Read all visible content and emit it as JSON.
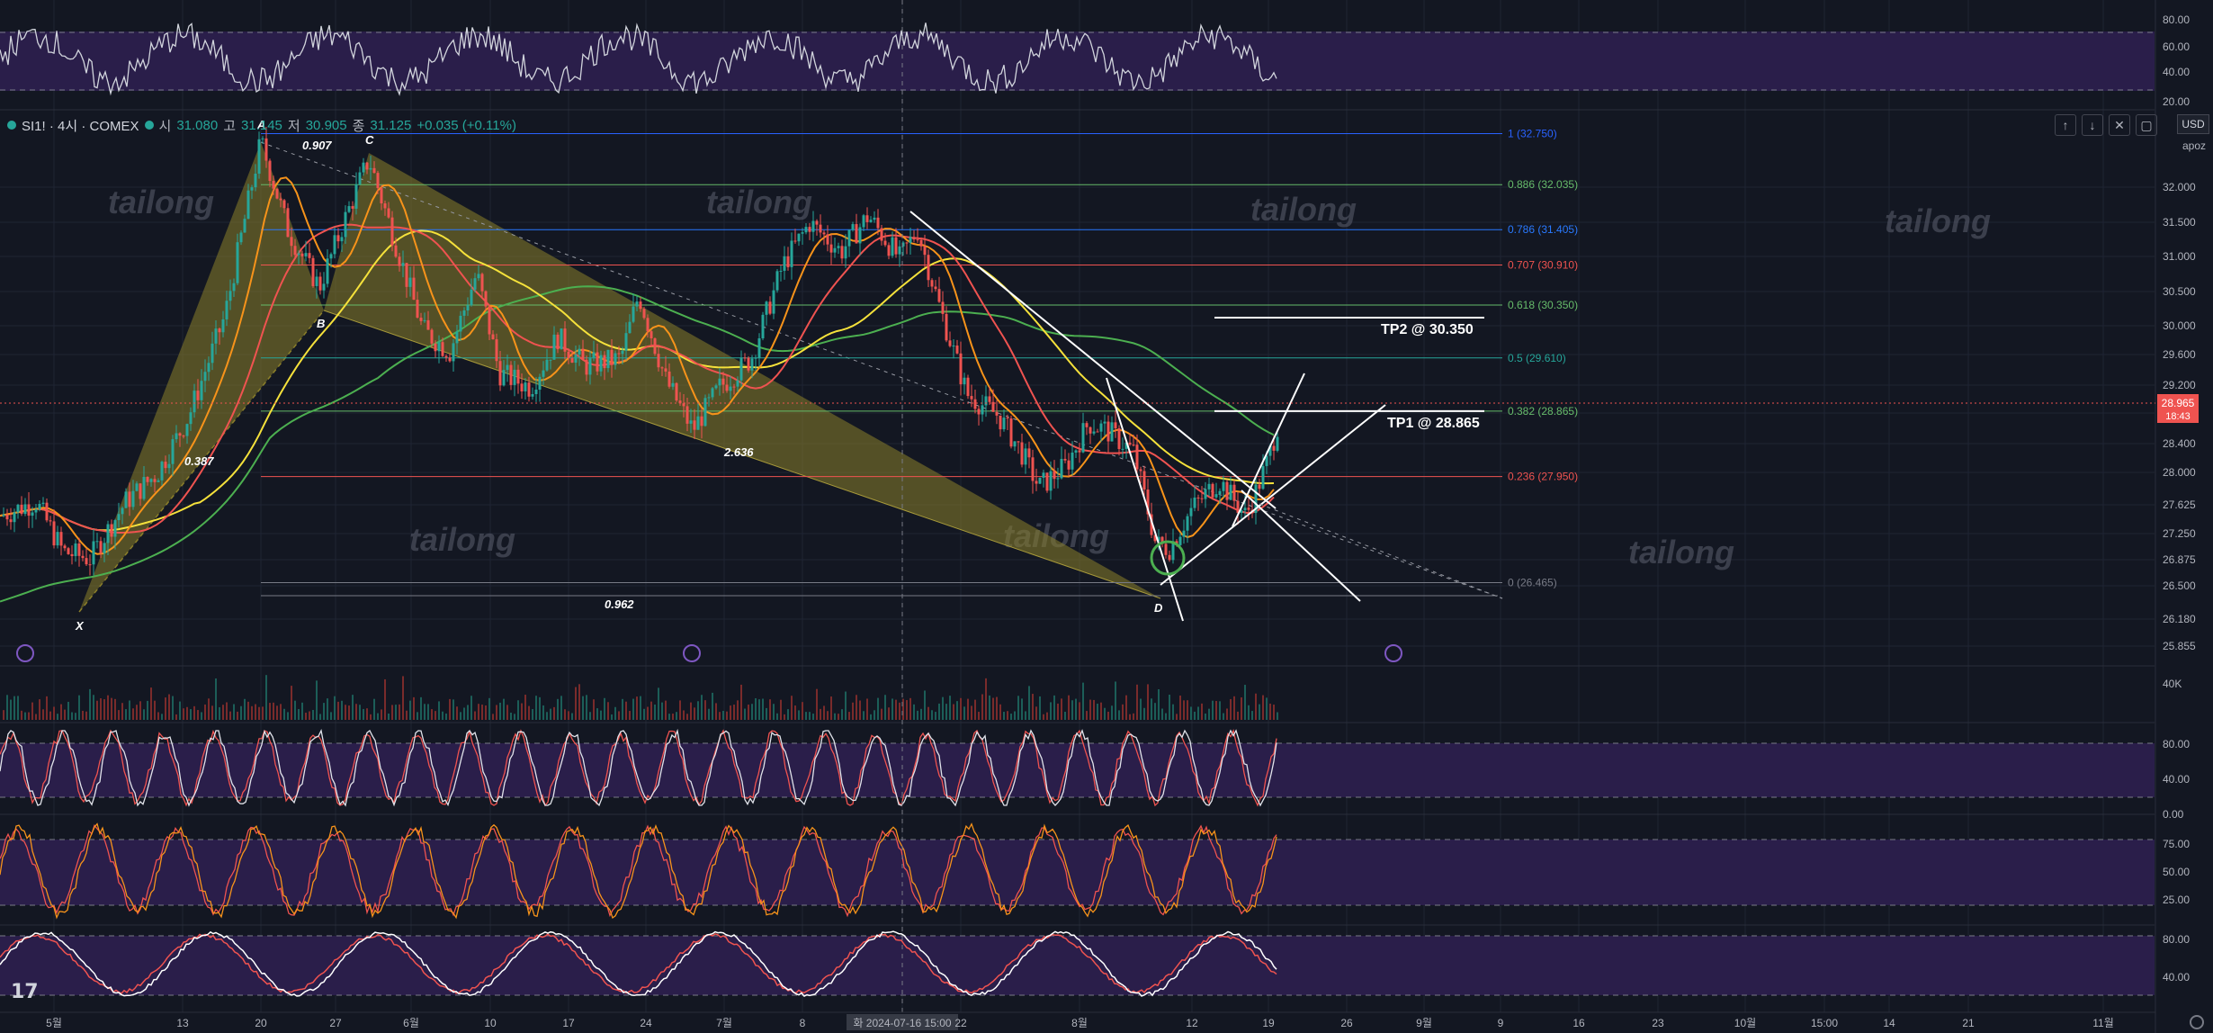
{
  "header": {
    "symbol": "SI1! · 4시 · COMEX",
    "o_label": "시",
    "o_value": "31.080",
    "h_label": "고",
    "h_value": "31.145",
    "l_label": "저",
    "l_value": "30.905",
    "c_label": "종",
    "c_value": "31.125",
    "change": "+0.035 (+0.11%)"
  },
  "controls": {
    "up": "↑",
    "down": "↓",
    "collapse": "✕",
    "restore": "▢"
  },
  "scale": {
    "currency": "USD",
    "mode": "apoz"
  },
  "colors": {
    "bg": "#131722",
    "grid": "#1f2433",
    "up": "#26a69a",
    "down": "#ef5350",
    "ma_short": "#f7931a",
    "ma_mid": "#ef5350",
    "ma_long": "#f5e13b",
    "ma_200": "#4caf50",
    "pattern_fill": "#8b7f2a",
    "indicator_band": "#2a1e4a"
  },
  "price_axis": {
    "labels": [
      "32.000",
      "31.500",
      "31.000",
      "30.500",
      "30.000",
      "29.600",
      "29.200",
      "28.800",
      "28.400",
      "28.000",
      "27.625",
      "27.250",
      "26.875",
      "26.500",
      "26.180",
      "25.855"
    ],
    "current_price": "28.965",
    "countdown": "18:43"
  },
  "rsi_top_axis": [
    "80.00",
    "60.00",
    "40.00",
    "20.00"
  ],
  "volume_axis": [
    "40K"
  ],
  "pane2_axis": [
    "80.00",
    "40.00",
    "0.00"
  ],
  "pane3_axis": [
    "75.00",
    "50.00",
    "25.00"
  ],
  "pane4_axis": [
    "80.00",
    "40.00"
  ],
  "time_axis": {
    "labels": [
      "5월",
      "13",
      "20",
      "27",
      "6월",
      "10",
      "17",
      "24",
      "7월",
      "8",
      "화 2024-07-16  15:00",
      "22",
      "8월",
      "12",
      "19",
      "26",
      "9월",
      "9",
      "16",
      "23",
      "10월",
      "15:00",
      "14",
      "21",
      "11월"
    ]
  },
  "fib_levels": [
    {
      "label": "1 (32.750)",
      "price": 32.75,
      "color": "#2962ff"
    },
    {
      "label": "0.886 (32.035)",
      "price": 32.035,
      "color": "#66bb6a"
    },
    {
      "label": "0.786 (31.405)",
      "price": 31.405,
      "color": "#2979ff"
    },
    {
      "label": "0.707 (30.910)",
      "price": 30.91,
      "color": "#ef5350"
    },
    {
      "label": "0.618 (30.350)",
      "price": 30.35,
      "color": "#66bb6a"
    },
    {
      "label": "0.5 (29.610)",
      "price": 29.61,
      "color": "#26a69a"
    },
    {
      "label": "0.382 (28.865)",
      "price": 28.865,
      "color": "#66bb6a"
    },
    {
      "label": "0.236 (27.950)",
      "price": 27.95,
      "color": "#ef5350"
    },
    {
      "label": "0 (26.465)",
      "price": 26.465,
      "color": "#787b86"
    }
  ],
  "targets": [
    {
      "label": "TP2 @ 30.350",
      "price": 30.35
    },
    {
      "label": "TP1 @ 28.865",
      "price": 28.865
    }
  ],
  "pattern_points": [
    "X",
    "A",
    "B",
    "C",
    "D"
  ],
  "pattern_ratios": [
    "0.907",
    "0.387",
    "2.636",
    "0.962"
  ],
  "watermark": "tailong",
  "chart_data": {
    "type": "line",
    "title": "",
    "series_hint": "SI1! 4h candlesticks with moving averages; values approximate",
    "x": [
      "5월",
      "13",
      "20",
      "27",
      "6월",
      "10",
      "17",
      "24",
      "7월",
      "8",
      "15",
      "22",
      "8월",
      "12",
      "19"
    ],
    "series": [
      {
        "values": [
          27.4,
          27.2,
          32.7,
          31.9,
          31.2,
          30.2,
          29.5,
          28.9,
          29.6,
          31.5,
          31.2,
          30.0,
          28.2,
          27.0,
          28.965
        ]
      }
    ],
    "ylim": [
      25.8,
      33.0
    ]
  }
}
